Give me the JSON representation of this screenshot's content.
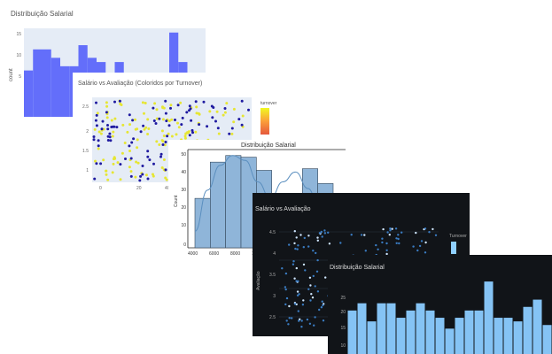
{
  "panels": {
    "p1": {
      "title": "Distribuição Salarial",
      "ylabel": "count",
      "yticks": [
        "15",
        "10",
        "5"
      ]
    },
    "p2": {
      "title": "Salário vs Avaliação (Coloridos por Turnover)",
      "colorbar_title": "turnover",
      "yticks": [
        "2.5",
        "2",
        "1.5",
        "1"
      ],
      "xticks": [
        "0",
        "20",
        "40"
      ]
    },
    "p3": {
      "title": "Distribuição Salarial",
      "ylabel": "Count",
      "yticks": [
        "50",
        "40",
        "30",
        "20",
        "10",
        "0"
      ],
      "xticks": [
        "4000",
        "6000",
        "8000",
        "10000",
        "12000"
      ]
    },
    "p4": {
      "title": "Salário vs Avaliação",
      "ylabel": "Avaliação",
      "yticks": [
        "4.5",
        "4",
        "3.5",
        "3",
        "2.5"
      ],
      "legend_label": "Turnover"
    },
    "p5": {
      "title": "Distribuição Salarial",
      "yticks": [
        "25",
        "20",
        "15",
        "10"
      ]
    }
  },
  "chart_data": [
    {
      "type": "bar",
      "title": "Distribuição Salarial",
      "ylabel": "count",
      "color": "#636efa",
      "values": [
        11,
        16,
        16,
        14,
        12,
        12,
        17,
        14,
        13,
        10,
        13,
        5,
        6,
        7,
        7,
        10,
        20,
        13,
        5,
        6
      ],
      "ylim": [
        0,
        21
      ]
    },
    {
      "type": "scatter",
      "title": "Salário vs Avaliação (Coloridos por Turnover)",
      "colors": {
        "dark": "#1f1aa0",
        "light": "#e6e633"
      },
      "colorbar_colors": [
        "#f0f921",
        "#fb9f3a",
        "#e5583d"
      ],
      "count_dark": 115,
      "count_light": 150,
      "xlim": [
        0,
        50
      ],
      "ylim": [
        0.8,
        2.8
      ]
    },
    {
      "type": "bar",
      "title": "Distribuição Salarial",
      "ylabel": "Count",
      "color": "#8fb5d9",
      "categories": [
        "4000",
        "5000",
        "6000",
        "7000",
        "8000",
        "9000",
        "10000",
        "11000",
        "12000"
      ],
      "values": [
        30,
        52,
        56,
        55,
        47,
        32,
        33,
        48,
        39
      ],
      "kde": [
        10,
        35,
        50,
        56,
        53,
        40,
        30,
        40,
        46,
        36,
        20,
        6
      ],
      "ylim": [
        0,
        58
      ]
    },
    {
      "type": "scatter",
      "title": "Salário vs Avaliação",
      "ylabel": "Avaliação",
      "colors": {
        "dark": "#3a7cc2",
        "light": "#cfe6ff"
      },
      "count_dark": 170,
      "count_light": 70,
      "ylim": [
        2.2,
        4.8
      ]
    },
    {
      "type": "bar",
      "title": "Distribuição Salarial",
      "color": "#85c3f4",
      "values": [
        20,
        22,
        17,
        22,
        22,
        18,
        20,
        22,
        20,
        18,
        15,
        18,
        20,
        20,
        28,
        18,
        18,
        17,
        21,
        23,
        16
      ],
      "ylim": [
        8,
        29
      ]
    }
  ]
}
